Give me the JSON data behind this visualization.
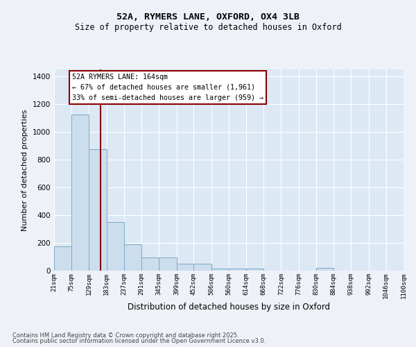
{
  "title1": "52A, RYMERS LANE, OXFORD, OX4 3LB",
  "title2": "Size of property relative to detached houses in Oxford",
  "xlabel": "Distribution of detached houses by size in Oxford",
  "ylabel": "Number of detached properties",
  "bar_color": "#ccdded",
  "bar_edge_color": "#7aaac8",
  "background_color": "#dce8f4",
  "fig_background_color": "#eef2f8",
  "grid_color": "#ffffff",
  "bins": [
    21,
    75,
    129,
    183,
    237,
    291,
    345,
    399,
    452,
    506,
    560,
    614,
    668,
    722,
    776,
    830,
    884,
    938,
    992,
    1046,
    1100
  ],
  "bin_labels": [
    "21sqm",
    "75sqm",
    "129sqm",
    "183sqm",
    "237sqm",
    "291sqm",
    "345sqm",
    "399sqm",
    "452sqm",
    "506sqm",
    "560sqm",
    "614sqm",
    "668sqm",
    "722sqm",
    "776sqm",
    "830sqm",
    "884sqm",
    "938sqm",
    "992sqm",
    "1046sqm",
    "1100sqm"
  ],
  "values": [
    175,
    1125,
    875,
    350,
    190,
    95,
    95,
    50,
    50,
    15,
    15,
    15,
    0,
    0,
    0,
    20,
    0,
    0,
    0,
    0
  ],
  "property_size": 164,
  "property_line_color": "#8b0000",
  "annotation_line1": "52A RYMERS LANE: 164sqm",
  "annotation_line2": "← 67% of detached houses are smaller (1,961)",
  "annotation_line3": "33% of semi-detached houses are larger (959) →",
  "annotation_box_color": "#8b0000",
  "annotation_bg_color": "#ffffff",
  "ylim": [
    0,
    1450
  ],
  "yticks": [
    0,
    200,
    400,
    600,
    800,
    1000,
    1200,
    1400
  ],
  "footer1": "Contains HM Land Registry data © Crown copyright and database right 2025.",
  "footer2": "Contains public sector information licensed under the Open Government Licence v3.0."
}
